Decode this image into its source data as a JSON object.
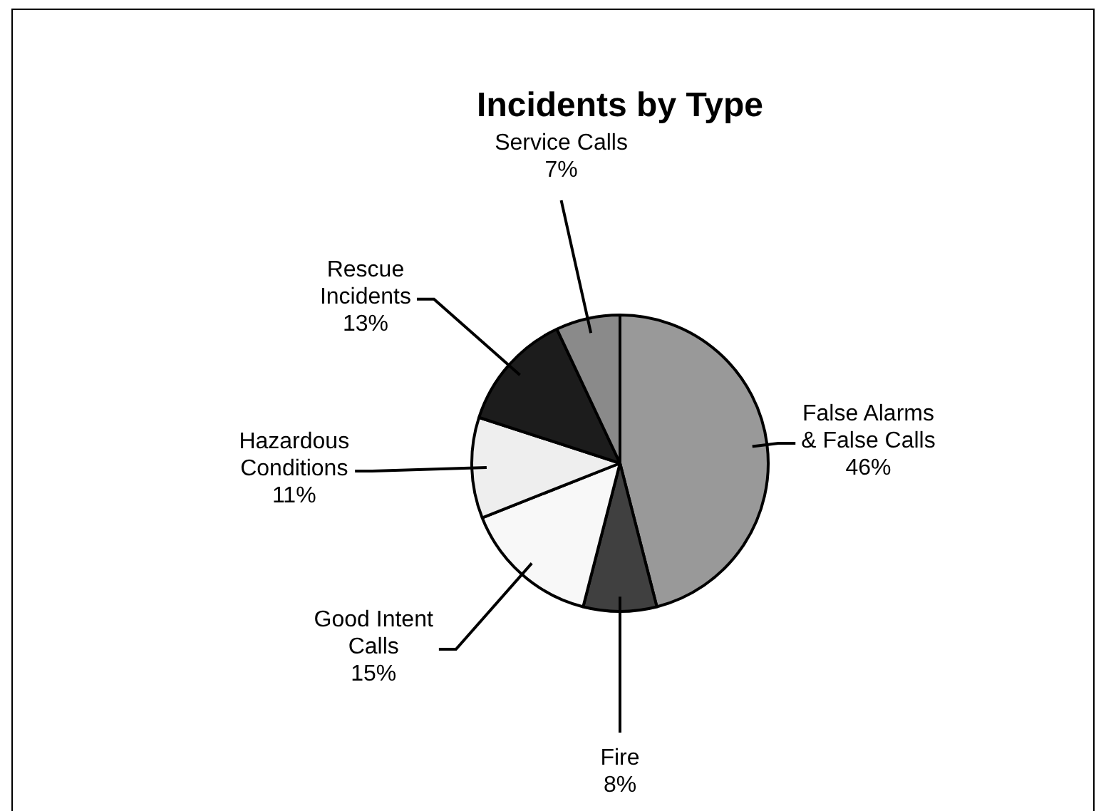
{
  "chart_data": {
    "type": "pie",
    "title": "Incidents by Type",
    "categories": [
      "False Alarms & False Calls",
      "Fire",
      "Good Intent Calls",
      "Hazardous Conditions",
      "Rescue Incidents",
      "Service Calls"
    ],
    "values": [
      46,
      8,
      15,
      11,
      13,
      7
    ],
    "colors": [
      "#999999",
      "#404040",
      "#f8f8f8",
      "#eeeeee",
      "#1c1c1c",
      "#8a8a8a"
    ],
    "value_labels": [
      "46%",
      "8%",
      "15%",
      "11%",
      "13%",
      "7%"
    ],
    "legend": false
  }
}
